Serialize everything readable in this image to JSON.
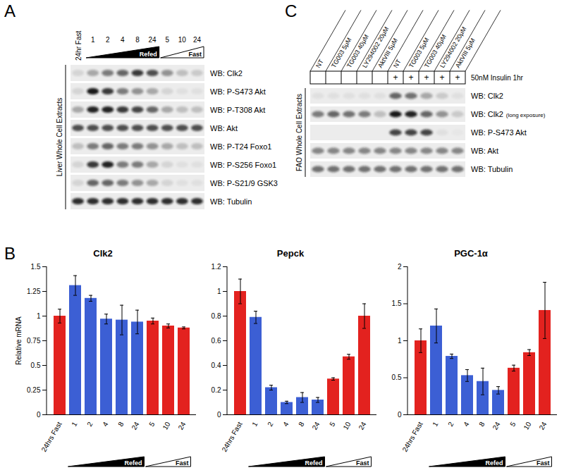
{
  "panel_labels": [
    "A",
    "B",
    "C"
  ],
  "blots": [
    {
      "panel": "A",
      "side_label": "Liver Whole Cell Extracts",
      "lanes": [
        "24hr Fast",
        "1",
        "2",
        "4",
        "8",
        "24",
        "5",
        "10",
        "24"
      ],
      "lane_groups": [
        null,
        "Refed",
        "Refed",
        "Refed",
        "Refed",
        "Refed",
        "Fast",
        "Fast",
        "Fast"
      ],
      "rows": [
        {
          "label": "WB: Clk2",
          "bands": [
            0.1,
            0.3,
            0.5,
            0.6,
            0.8,
            0.7,
            0.4,
            0.2,
            0.15
          ]
        },
        {
          "label": "WB: P-S473 Akt",
          "bands": [
            0.1,
            0.95,
            0.8,
            0.5,
            0.4,
            0.3,
            0.1,
            0.05,
            0.05
          ]
        },
        {
          "label": "WB: P-T308 Akt",
          "bands": [
            0.3,
            0.9,
            0.9,
            0.8,
            0.75,
            0.6,
            0.3,
            0.2,
            0.2
          ]
        },
        {
          "label": "WB: Akt",
          "bands": [
            0.7,
            0.7,
            0.7,
            0.7,
            0.7,
            0.7,
            0.7,
            0.7,
            0.7
          ]
        },
        {
          "label": "WB: P-T24 Foxo1",
          "bands": [
            0.2,
            0.5,
            0.6,
            0.5,
            0.5,
            0.4,
            0.3,
            0.2,
            0.2
          ]
        },
        {
          "label": "WB: P-S256 Foxo1",
          "bands": [
            0.1,
            0.8,
            0.9,
            0.5,
            0.5,
            0.3,
            0.1,
            0.05,
            0.05
          ]
        },
        {
          "label": "WB: P-S21/9 GSK3",
          "bands": [
            0.1,
            0.6,
            0.6,
            0.5,
            0.4,
            0.3,
            0.1,
            0.05,
            0.05
          ]
        },
        {
          "label": "WB: Tubulin",
          "bands": [
            0.85,
            0.85,
            0.85,
            0.85,
            0.85,
            0.85,
            0.85,
            0.85,
            0.85
          ]
        }
      ]
    },
    {
      "panel": "C",
      "side_label": "FAO Whole Cell Extracts",
      "lanes": [
        "NT",
        "TG003 5μM",
        "TG003 40μM",
        "LY294002 20μM",
        "AktVIII 5μM",
        "NT",
        "TG003 5μM",
        "TG003 40μM",
        "LY294002 20μM",
        "AktVIII 5μM"
      ],
      "treatment_label": "50nM Insulin 1hr",
      "treatment": [
        null,
        null,
        null,
        null,
        null,
        "+",
        "+",
        "+",
        "+",
        "+"
      ],
      "rows": [
        {
          "label": "WB: Clk2",
          "bands": [
            0.05,
            0.05,
            0.05,
            0.05,
            0.05,
            0.6,
            0.55,
            0.3,
            0.15,
            0.05
          ]
        },
        {
          "label": "WB: Clk2",
          "note": "(long exposure)",
          "bands": [
            0.5,
            0.6,
            0.55,
            0.5,
            0.2,
            0.95,
            0.9,
            0.6,
            0.4,
            0.15
          ]
        },
        {
          "label": "WB: P-S473 Akt",
          "bands": [
            0,
            0,
            0,
            0,
            0,
            0.75,
            0.75,
            0.75,
            0.05,
            0.02
          ]
        },
        {
          "label": "WB: Akt",
          "bands": [
            0.45,
            0.45,
            0.45,
            0.45,
            0.45,
            0.45,
            0.45,
            0.45,
            0.45,
            0.45
          ]
        },
        {
          "label": "WB: Tubulin",
          "bands": [
            0.55,
            0.55,
            0.55,
            0.55,
            0.55,
            0.55,
            0.55,
            0.55,
            0.55,
            0.55
          ]
        }
      ]
    }
  ],
  "chart_data": [
    {
      "type": "bar",
      "title": "Clk2",
      "y_label": "Relative mRNA",
      "categories": [
        "24hrs Fast",
        "1",
        "2",
        "4",
        "8",
        "24",
        "5",
        "10",
        "24"
      ],
      "groups": [
        null,
        "Refed",
        "Refed",
        "Refed",
        "Refed",
        "Refed",
        "Fast",
        "Fast",
        "Fast"
      ],
      "values": [
        1.0,
        1.31,
        1.18,
        0.97,
        0.96,
        0.94,
        0.95,
        0.9,
        0.88
      ],
      "errors": [
        0.07,
        0.1,
        0.03,
        0.05,
        0.15,
        0.12,
        0.03,
        0.02,
        0.01
      ],
      "colors": [
        "#e3221f",
        "#3c5fd4",
        "#3c5fd4",
        "#3c5fd4",
        "#3c5fd4",
        "#3c5fd4",
        "#e3221f",
        "#e3221f",
        "#e3221f"
      ],
      "ylim": [
        0,
        1.5
      ],
      "yticks": [
        0,
        0.25,
        0.5,
        0.75,
        1,
        1.25,
        1.5
      ],
      "grid": false
    },
    {
      "type": "bar",
      "title": "Pepck",
      "categories": [
        "24hrs Fast",
        "1",
        "2",
        "4",
        "8",
        "24",
        "5",
        "10",
        "24"
      ],
      "groups": [
        null,
        "Refed",
        "Refed",
        "Refed",
        "Refed",
        "Refed",
        "Fast",
        "Fast",
        "Fast"
      ],
      "values": [
        1.0,
        0.79,
        0.22,
        0.1,
        0.14,
        0.12,
        0.29,
        0.47,
        0.8
      ],
      "errors": [
        0.1,
        0.05,
        0.02,
        0.01,
        0.04,
        0.02,
        0.01,
        0.02,
        0.1
      ],
      "colors": [
        "#e3221f",
        "#3c5fd4",
        "#3c5fd4",
        "#3c5fd4",
        "#3c5fd4",
        "#3c5fd4",
        "#e3221f",
        "#e3221f",
        "#e3221f"
      ],
      "ylim": [
        0,
        1.2
      ],
      "yticks": [
        0,
        0.2,
        0.4,
        0.6,
        0.8,
        1,
        1.2
      ],
      "grid": false
    },
    {
      "type": "bar",
      "title": "PGC-1α",
      "categories": [
        "24hrs Fast",
        "1",
        "2",
        "4",
        "8",
        "24",
        "5",
        "10",
        "24"
      ],
      "groups": [
        null,
        "Refed",
        "Refed",
        "Refed",
        "Refed",
        "Refed",
        "Fast",
        "Fast",
        "Fast"
      ],
      "values": [
        1.0,
        1.2,
        0.79,
        0.53,
        0.45,
        0.33,
        0.63,
        0.84,
        1.41
      ],
      "errors": [
        0.16,
        0.23,
        0.03,
        0.08,
        0.18,
        0.05,
        0.04,
        0.04,
        0.38
      ],
      "colors": [
        "#e3221f",
        "#3c5fd4",
        "#3c5fd4",
        "#3c5fd4",
        "#3c5fd4",
        "#3c5fd4",
        "#e3221f",
        "#e3221f",
        "#e3221f"
      ],
      "ylim": [
        0,
        2
      ],
      "yticks": [
        0,
        0.5,
        1,
        1.5,
        2
      ],
      "grid": false
    }
  ]
}
